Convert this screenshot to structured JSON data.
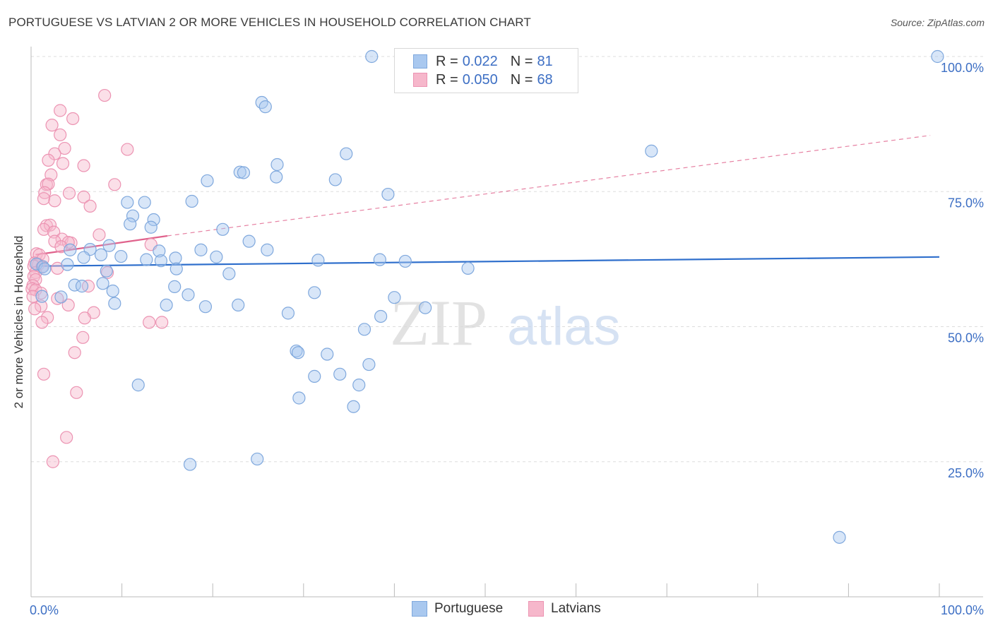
{
  "title": "PORTUGUESE VS LATVIAN 2 OR MORE VEHICLES IN HOUSEHOLD CORRELATION CHART",
  "source": "Source: ZipAtlas.com",
  "watermark": {
    "zip": "ZIP",
    "atlas": "atlas"
  },
  "legend": {
    "rows": [
      {
        "r_label": "R =",
        "r_value": "0.022",
        "n_label": "N =",
        "n_value": "81"
      },
      {
        "r_label": "R =",
        "r_value": "0.050",
        "n_label": "N =",
        "n_value": "68"
      }
    ]
  },
  "bottom_legend": {
    "portuguese": "Portuguese",
    "latvians": "Latvians"
  },
  "colors": {
    "blue_fill": "#a9c8ef",
    "blue_stroke": "#7fa8dd",
    "blue_line": "#2f6fcc",
    "pink_fill": "#f6b7cb",
    "pink_stroke": "#ec93b2",
    "pink_line": "#e0628c",
    "tick_text": "#3d6fc4",
    "grid": "#dddddd"
  },
  "chart_data": {
    "type": "scatter",
    "title": "PORTUGUESE VS LATVIAN 2 OR MORE VEHICLES IN HOUSEHOLD CORRELATION CHART",
    "xlabel": "",
    "ylabel": "2 or more Vehicles in Household",
    "xlim": [
      0,
      100
    ],
    "ylim": [
      0,
      103
    ],
    "x_tick_labels": [
      "0.0%",
      "100.0%"
    ],
    "y_ticks": [
      25,
      50,
      75,
      100
    ],
    "y_tick_labels": [
      "25.0%",
      "50.0%",
      "75.0%",
      "100.0%"
    ],
    "grid": true,
    "series": [
      {
        "name": "Portuguese",
        "R": 0.022,
        "N": 81,
        "trend": {
          "x": [
            0.5,
            100
          ],
          "y": [
            61.2,
            62.9
          ],
          "style": "solid"
        },
        "points": [
          [
            37.5,
            100
          ],
          [
            99.8,
            100
          ],
          [
            25.4,
            91.5
          ],
          [
            25.8,
            90.7
          ],
          [
            68.3,
            82.5
          ],
          [
            34.7,
            82
          ],
          [
            27.1,
            80
          ],
          [
            23,
            78.6
          ],
          [
            23.4,
            78.5
          ],
          [
            19.4,
            77
          ],
          [
            27,
            77.7
          ],
          [
            33.5,
            77.2
          ],
          [
            39.3,
            74.5
          ],
          [
            17.7,
            73.2
          ],
          [
            10.6,
            73
          ],
          [
            12.5,
            73
          ],
          [
            11.2,
            70.5
          ],
          [
            10.9,
            69
          ],
          [
            13.5,
            69.8
          ],
          [
            13.2,
            68.4
          ],
          [
            21.1,
            68
          ],
          [
            24,
            65.8
          ],
          [
            8.6,
            65
          ],
          [
            6.5,
            64.3
          ],
          [
            4.3,
            64.2
          ],
          [
            26,
            64.2
          ],
          [
            18.7,
            64.2
          ],
          [
            14.1,
            64
          ],
          [
            7.7,
            63.3
          ],
          [
            9.9,
            63
          ],
          [
            20.4,
            62.9
          ],
          [
            12.7,
            62.4
          ],
          [
            14.3,
            62.2
          ],
          [
            15.9,
            62.7
          ],
          [
            5.8,
            62.8
          ],
          [
            31.6,
            62.3
          ],
          [
            38.4,
            62.4
          ],
          [
            41.2,
            62.1
          ],
          [
            0.6,
            61.6
          ],
          [
            4,
            61.5
          ],
          [
            1.3,
            61.1
          ],
          [
            1.5,
            60.7
          ],
          [
            8.3,
            60.3
          ],
          [
            16,
            60.7
          ],
          [
            48.1,
            60.8
          ],
          [
            21.8,
            59.8
          ],
          [
            7.9,
            58
          ],
          [
            4.8,
            57.7
          ],
          [
            5.6,
            57.5
          ],
          [
            15.8,
            57.4
          ],
          [
            9,
            56.6
          ],
          [
            17.3,
            55.9
          ],
          [
            31.2,
            56.3
          ],
          [
            40,
            55.4
          ],
          [
            3.3,
            55.5
          ],
          [
            1.2,
            55.6
          ],
          [
            9.2,
            54.3
          ],
          [
            14.9,
            54
          ],
          [
            19.2,
            53.7
          ],
          [
            22.8,
            54
          ],
          [
            43.4,
            53.5
          ],
          [
            28.3,
            52.5
          ],
          [
            38.5,
            51.9
          ],
          [
            36.7,
            49.5
          ],
          [
            29.2,
            45.5
          ],
          [
            29.4,
            45.2
          ],
          [
            32.6,
            44.9
          ],
          [
            37.2,
            43
          ],
          [
            31.2,
            40.8
          ],
          [
            34,
            41.2
          ],
          [
            11.8,
            39.2
          ],
          [
            36.1,
            39.2
          ],
          [
            29.5,
            36.8
          ],
          [
            35.5,
            35.2
          ],
          [
            17.5,
            24.5
          ],
          [
            24.9,
            25.5
          ],
          [
            89,
            11
          ]
        ]
      },
      {
        "name": "Latvians",
        "R": 0.05,
        "N": 68,
        "trend": {
          "x": [
            0.5,
            15
          ],
          "y": [
            63.3,
            66.8
          ],
          "style": "solid",
          "extended": {
            "x": [
              15,
              99
            ],
            "y": [
              66.8,
              85.4
            ],
            "style": "dashed"
          }
        },
        "points": [
          [
            8.1,
            92.8
          ],
          [
            3.2,
            90
          ],
          [
            4.6,
            88.5
          ],
          [
            2.3,
            87.3
          ],
          [
            3.2,
            85.5
          ],
          [
            10.6,
            82.8
          ],
          [
            3.7,
            83
          ],
          [
            2.6,
            82
          ],
          [
            1.9,
            80.8
          ],
          [
            3.5,
            80.2
          ],
          [
            5.8,
            79.8
          ],
          [
            2.2,
            78.1
          ],
          [
            9.2,
            76.3
          ],
          [
            1.7,
            76.3
          ],
          [
            1.9,
            76.4
          ],
          [
            1.5,
            74.8
          ],
          [
            4.2,
            74.7
          ],
          [
            5.8,
            74
          ],
          [
            1.4,
            73.7
          ],
          [
            2.6,
            73.3
          ],
          [
            6.5,
            72.3
          ],
          [
            1.7,
            68.7
          ],
          [
            2.1,
            68.8
          ],
          [
            1.4,
            68
          ],
          [
            2.5,
            67.5
          ],
          [
            7.5,
            67
          ],
          [
            3.4,
            66.2
          ],
          [
            4.4,
            65.5
          ],
          [
            4.1,
            65.6
          ],
          [
            2.6,
            65.8
          ],
          [
            13.2,
            65.2
          ],
          [
            3.3,
            64.8
          ],
          [
            0.6,
            63.5
          ],
          [
            0.9,
            63.3
          ],
          [
            1.3,
            62.5
          ],
          [
            0.4,
            61.8
          ],
          [
            0.8,
            61.5
          ],
          [
            0.3,
            61.2
          ],
          [
            1.2,
            61
          ],
          [
            2.9,
            60.8
          ],
          [
            0.5,
            60
          ],
          [
            8.4,
            60
          ],
          [
            0.3,
            59.3
          ],
          [
            0.5,
            58.7
          ],
          [
            0.2,
            57.6
          ],
          [
            0.1,
            57
          ],
          [
            0.5,
            56.8
          ],
          [
            1.1,
            56.2
          ],
          [
            0.2,
            55.6
          ],
          [
            2.9,
            55.2
          ],
          [
            6.3,
            57.5
          ],
          [
            4.1,
            54
          ],
          [
            1.1,
            53.8
          ],
          [
            0.4,
            53.3
          ],
          [
            6.9,
            52.6
          ],
          [
            5.9,
            51.6
          ],
          [
            1.8,
            51.7
          ],
          [
            1.2,
            50.8
          ],
          [
            13,
            50.8
          ],
          [
            14.4,
            50.8
          ],
          [
            5.7,
            48
          ],
          [
            4.8,
            45.2
          ],
          [
            1.4,
            41.2
          ],
          [
            5,
            37.8
          ],
          [
            3.9,
            29.5
          ],
          [
            2.4,
            25
          ]
        ]
      }
    ]
  }
}
